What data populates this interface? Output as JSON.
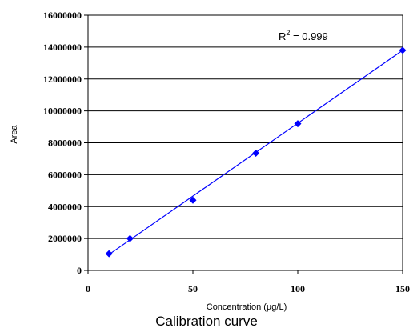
{
  "chart_data": {
    "type": "scatter",
    "caption": "Calibration curve",
    "xlabel": "Concentration (µg/L)",
    "ylabel": "Area",
    "xlim": [
      0,
      150
    ],
    "ylim": [
      0,
      16000000
    ],
    "x_ticks": [
      0,
      50,
      100,
      150
    ],
    "y_ticks": [
      0,
      2000000,
      4000000,
      6000000,
      8000000,
      10000000,
      12000000,
      14000000,
      16000000
    ],
    "grid": "horizontal",
    "series": [
      {
        "points": [
          {
            "x": 10,
            "y": 1050000
          },
          {
            "x": 20,
            "y": 2000000
          },
          {
            "x": 50,
            "y": 4400000
          },
          {
            "x": 80,
            "y": 7350000
          },
          {
            "x": 100,
            "y": 9200000
          },
          {
            "x": 150,
            "y": 13800000
          }
        ],
        "color": "#0000ff"
      }
    ],
    "trendline": {
      "type": "linear",
      "x_range": [
        10,
        150
      ],
      "y_range": [
        1000000,
        13800000
      ],
      "color": "#0000ff"
    },
    "annotation": {
      "base": "R",
      "superscript": "2",
      "rest": " = 0.999"
    }
  }
}
